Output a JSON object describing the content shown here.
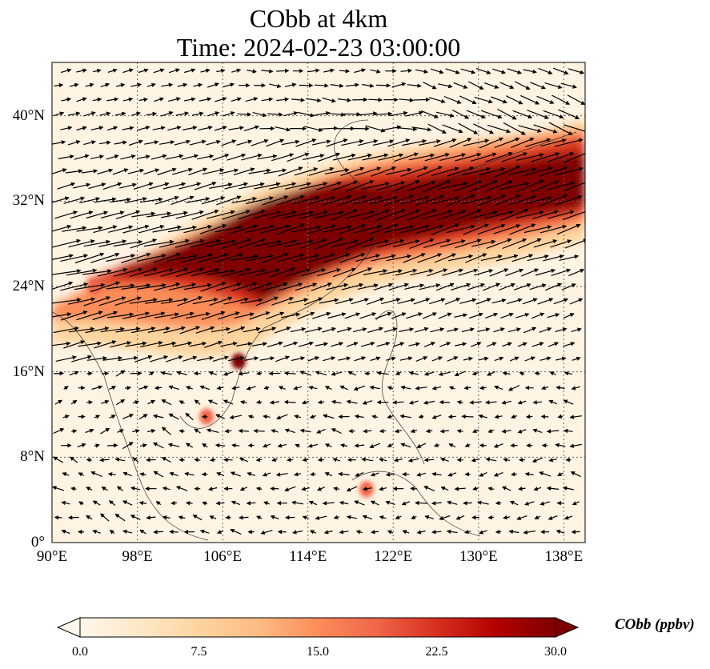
{
  "title": {
    "line1": "CObb at 4km",
    "line2": "Time: 2024-02-23 03:00:00"
  },
  "map": {
    "extent": {
      "lon": [
        90,
        140
      ],
      "lat": [
        0,
        45
      ]
    },
    "lat_ticks": [
      {
        "value": 0,
        "label": "0°"
      },
      {
        "value": 8,
        "label": "8°N"
      },
      {
        "value": 16,
        "label": "16°N"
      },
      {
        "value": 24,
        "label": "24°N"
      },
      {
        "value": 32,
        "label": "32°N"
      },
      {
        "value": 40,
        "label": "40°N"
      }
    ],
    "lon_ticks": [
      {
        "value": 90,
        "label": "90°E"
      },
      {
        "value": 98,
        "label": "98°E"
      },
      {
        "value": 106,
        "label": "106°E"
      },
      {
        "value": 114,
        "label": "114°E"
      },
      {
        "value": 122,
        "label": "122°E"
      },
      {
        "value": 130,
        "label": "130°E"
      },
      {
        "value": 138,
        "label": "138°E"
      }
    ],
    "gridlines": true,
    "field": "CObb",
    "plume_core": [
      {
        "lon": 100,
        "lat": 26.5
      },
      {
        "lon": 106,
        "lat": 27.5
      },
      {
        "lon": 112,
        "lat": 29.5
      },
      {
        "lon": 118,
        "lat": 30.5
      },
      {
        "lon": 124,
        "lat": 31.5
      },
      {
        "lon": 130,
        "lat": 32.5
      },
      {
        "lon": 136,
        "lat": 33.5
      },
      {
        "lon": 140,
        "lat": 34
      }
    ],
    "hotspots": [
      {
        "lon": 107.5,
        "lat": 17,
        "value": 30
      },
      {
        "lon": 104.5,
        "lat": 11.8,
        "value": 20
      },
      {
        "lon": 119.5,
        "lat": 5,
        "value": 18
      },
      {
        "lon": 94,
        "lat": 24,
        "value": 18
      }
    ]
  },
  "colorbar": {
    "label": "CObb (ppbv)",
    "min": 0,
    "max": 30,
    "ticks": [
      "0.0",
      "7.5",
      "15.0",
      "22.5",
      "30.0"
    ],
    "extend": "both",
    "colormap": "OrRd",
    "colors": [
      "#fff7ec",
      "#fee8c8",
      "#fdd49e",
      "#fdbb84",
      "#fc8d59",
      "#ef6548",
      "#d7301f",
      "#b30000",
      "#7f0000"
    ]
  }
}
